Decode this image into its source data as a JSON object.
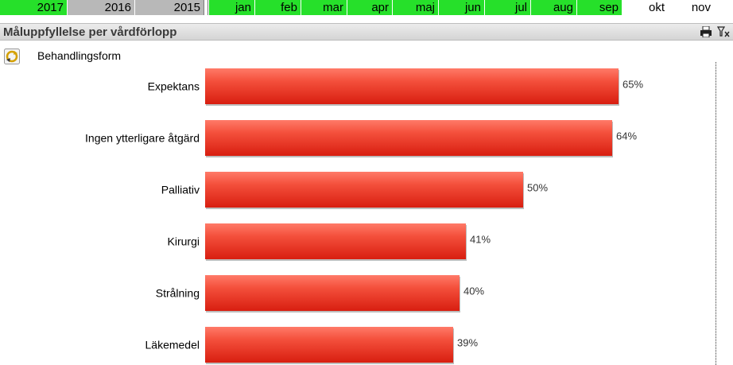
{
  "filters": {
    "years": [
      {
        "label": "2017",
        "state": "selected"
      },
      {
        "label": "2016",
        "state": "alternative"
      },
      {
        "label": "2015",
        "state": "alternative"
      }
    ],
    "months": [
      {
        "label": "jan",
        "state": "selected"
      },
      {
        "label": "feb",
        "state": "selected"
      },
      {
        "label": "mar",
        "state": "selected"
      },
      {
        "label": "apr",
        "state": "selected"
      },
      {
        "label": "maj",
        "state": "selected"
      },
      {
        "label": "jun",
        "state": "selected"
      },
      {
        "label": "jul",
        "state": "selected"
      },
      {
        "label": "aug",
        "state": "selected"
      },
      {
        "label": "sep",
        "state": "selected"
      },
      {
        "label": "okt",
        "state": "excluded"
      },
      {
        "label": "nov",
        "state": "excluded"
      }
    ],
    "colors": {
      "selected": "#26e02a",
      "alternative": "#b8b8b8",
      "excluded": "#ffffff"
    }
  },
  "panel": {
    "title": "Måluppfyllelse per vårdförlopp",
    "icons": [
      "printer-icon",
      "clear-selection-icon"
    ],
    "dimension": {
      "icon": "cycle-dimension-icon",
      "label": "Behandlingsform"
    }
  },
  "chart_data": {
    "type": "bar",
    "orientation": "horizontal",
    "categories": [
      "Expektans",
      "Ingen ytterligare åtgärd",
      "Palliativ",
      "Kirurgi",
      "Strålning",
      "Läkemedel"
    ],
    "values": [
      65,
      64,
      50,
      41,
      40,
      39
    ],
    "value_labels": [
      "65%",
      "64%",
      "50%",
      "41%",
      "40%",
      "39%"
    ],
    "unit": "%",
    "bar_color": "#e8321e",
    "xlim": [
      0,
      80
    ],
    "grid": false,
    "title": "",
    "xlabel": "",
    "ylabel": ""
  }
}
